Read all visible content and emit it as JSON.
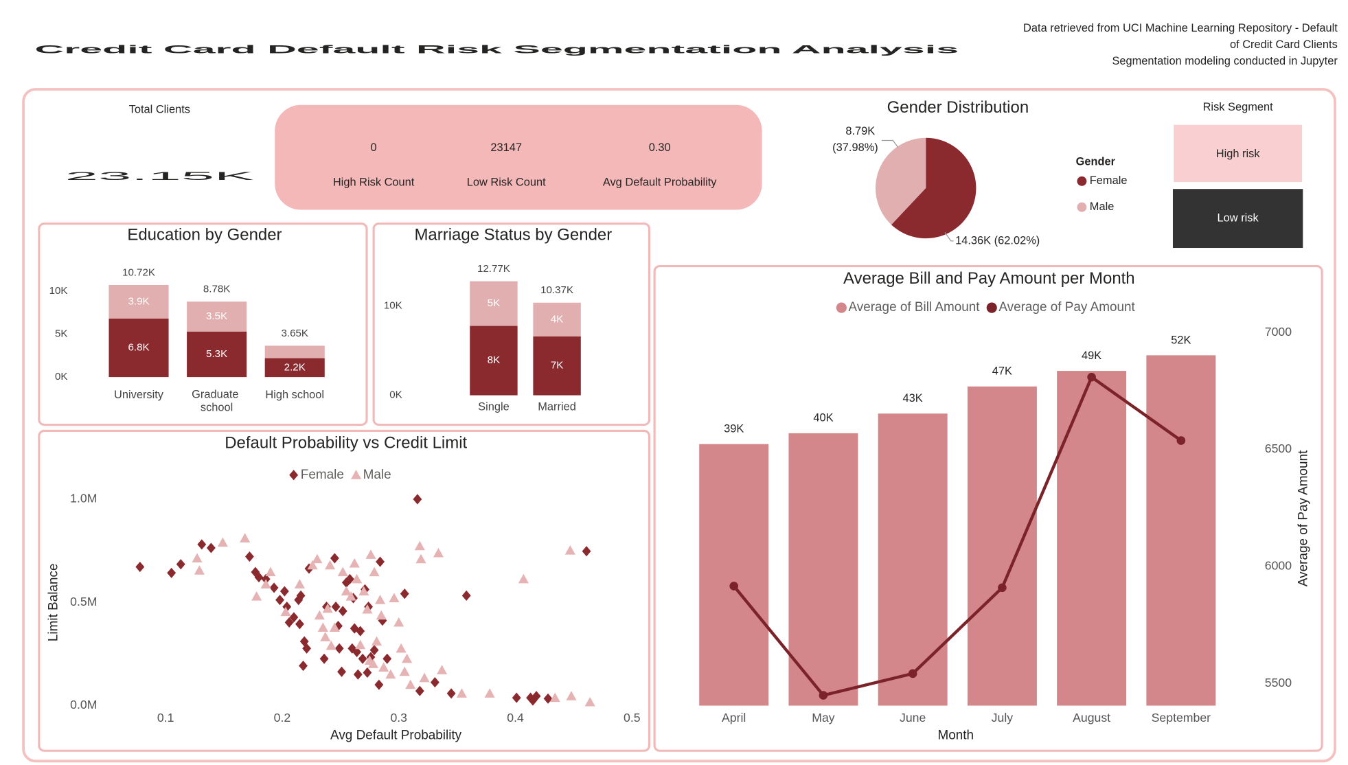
{
  "header": {
    "title": "Credit Card Default Risk Segmentation Analysis",
    "source_lines": [
      "Data retrieved from UCI Machine Learning Repository - Default",
      "of Credit Card Clients",
      "Segmentation modeling conducted in Jupyter"
    ]
  },
  "kpis": {
    "total_clients": {
      "label": "Total Clients",
      "value": "23.15K"
    },
    "cards": [
      {
        "value": "0",
        "label": "High Risk Count"
      },
      {
        "value": "23147",
        "label": "Low Risk Count"
      },
      {
        "value": "0.30",
        "label": "Avg Default Probability"
      }
    ]
  },
  "risk_segment": {
    "title": "Risk Segment",
    "items": [
      "High risk",
      "Low risk"
    ]
  },
  "chart_data": [
    {
      "type": "stacked_bar",
      "title": "Education by Gender",
      "categories": [
        "University",
        "Graduate school",
        "High school"
      ],
      "series": [
        {
          "color": "#8b2a2e",
          "values": [
            6820,
            5300,
            2200
          ],
          "value_labels": [
            "6.8K",
            "5.3K",
            "2.2K"
          ]
        },
        {
          "color": "#e2afb0",
          "values": [
            3900,
            3480,
            1450
          ],
          "value_labels": [
            "3.9K",
            "3.5K",
            null
          ]
        }
      ],
      "totals": [
        10720,
        8780,
        3650
      ],
      "total_labels": [
        "10.72K",
        "8.78K",
        "3.65K"
      ],
      "ylim": [
        0,
        11600
      ],
      "yticks": [
        {
          "value": 0,
          "label": "0K"
        },
        {
          "value": 5000,
          "label": "5K"
        },
        {
          "value": 10000,
          "label": "10K"
        }
      ]
    },
    {
      "type": "stacked_bar",
      "title": "Marriage Status by Gender",
      "categories": [
        "Single",
        "Married"
      ],
      "series": [
        {
          "color": "#8b2a2e",
          "values": [
            7770,
            6600
          ],
          "value_labels": [
            "8K",
            "7K"
          ]
        },
        {
          "color": "#e2afb0",
          "values": [
            5000,
            3770
          ],
          "value_labels": [
            "5K",
            "4K"
          ]
        }
      ],
      "totals": [
        12770,
        10370
      ],
      "total_labels": [
        "12.77K",
        "10.37K"
      ],
      "ylim": [
        0,
        13200
      ],
      "yticks": [
        {
          "value": 0,
          "label": "0K"
        },
        {
          "value": 10000,
          "label": "10K"
        }
      ]
    },
    {
      "type": "pie",
      "title": "Gender Distribution",
      "legend_title": "Gender",
      "categories": [
        "Female",
        "Male"
      ],
      "values": [
        14360,
        8790
      ],
      "value_labels": [
        "14.36K (62.02%)",
        "8.79K (37.98%)"
      ],
      "colors": [
        "#8b2a2e",
        "#e2afb0"
      ]
    },
    {
      "type": "scatter",
      "title": "Default Probability vs Credit Limit",
      "x_label": "Avg Default Probability",
      "y_label": "Limit Balance",
      "series": [
        {
          "name": "Female",
          "marker": "diamond",
          "color": "#8b2a2e",
          "x": [
            0.078,
            0.105,
            0.113,
            0.131,
            0.139,
            0.172,
            0.177,
            0.18,
            0.186,
            0.193,
            0.198,
            0.202,
            0.204,
            0.206,
            0.21,
            0.214,
            0.215,
            0.216,
            0.219,
            0.221,
            0.218,
            0.223,
            0.238,
            0.236,
            0.245,
            0.246,
            0.248,
            0.249,
            0.251,
            0.252,
            0.255,
            0.258,
            0.26,
            0.261,
            0.262,
            0.264,
            0.265,
            0.267,
            0.269,
            0.271,
            0.273,
            0.274,
            0.276,
            0.279,
            0.284,
            0.286,
            0.283,
            0.29,
            0.305,
            0.316,
            0.318,
            0.331,
            0.345,
            0.358,
            0.401,
            0.413,
            0.415,
            0.418,
            0.428,
            0.461
          ],
          "values": [
            672000,
            643000,
            685000,
            781000,
            764000,
            722000,
            647000,
            622000,
            613000,
            571000,
            512000,
            554000,
            479000,
            403000,
            428000,
            512000,
            395000,
            533000,
            311000,
            277000,
            193000,
            664000,
            479000,
            227000,
            714000,
            479000,
            386000,
            277000,
            164000,
            458000,
            596000,
            613000,
            277000,
            521000,
            374000,
            260000,
            151000,
            361000,
            227000,
            563000,
            160000,
            479000,
            235000,
            269000,
            697000,
            412000,
            101000,
            227000,
            542000,
            1000000,
            71000,
            113000,
            59000,
            533000,
            38000,
            38000,
            25000,
            46000,
            34000,
            748000
          ]
        },
        {
          "name": "Male",
          "marker": "triangle",
          "color": "#e6b3b4",
          "x": [
            0.127,
            0.129,
            0.149,
            0.168,
            0.178,
            0.186,
            0.19,
            0.203,
            0.215,
            0.226,
            0.23,
            0.232,
            0.235,
            0.237,
            0.239,
            0.241,
            0.242,
            0.245,
            0.252,
            0.255,
            0.259,
            0.262,
            0.264,
            0.267,
            0.27,
            0.273,
            0.275,
            0.276,
            0.278,
            0.279,
            0.281,
            0.284,
            0.285,
            0.287,
            0.293,
            0.296,
            0.3,
            0.302,
            0.305,
            0.307,
            0.31,
            0.318,
            0.319,
            0.322,
            0.334,
            0.337,
            0.354,
            0.378,
            0.407,
            0.434,
            0.447,
            0.448,
            0.464
          ],
          "values": [
            714000,
            655000,
            790000,
            811000,
            529000,
            588000,
            647000,
            454000,
            588000,
            680000,
            710000,
            437000,
            378000,
            332000,
            470000,
            680000,
            290000,
            378000,
            647000,
            554000,
            529000,
            689000,
            613000,
            294000,
            554000,
            466000,
            218000,
            731000,
            202000,
            647000,
            311000,
            512000,
            437000,
            185000,
            151000,
            521000,
            403000,
            277000,
            164000,
            227000,
            101000,
            773000,
            710000,
            134000,
            739000,
            172000,
            59000,
            59000,
            613000,
            38000,
            752000,
            46000,
            17000
          ]
        }
      ],
      "xlim": [
        0.055,
        0.5
      ],
      "xticks": [
        0.1,
        0.2,
        0.3,
        0.4,
        0.5
      ],
      "ylim": [
        0,
        1050000
      ],
      "yticks": [
        {
          "value": 0,
          "label": "0.0M"
        },
        {
          "value": 500000,
          "label": "0.5M"
        },
        {
          "value": 1000000,
          "label": "1.0M"
        }
      ]
    },
    {
      "type": "bar_line",
      "title": "Average Bill and Pay Amount per Month",
      "x_label": "Month",
      "y2_label": "Average of Pay Amount",
      "categories": [
        "April",
        "May",
        "June",
        "July",
        "August",
        "September"
      ],
      "series": [
        {
          "name": "Average of Bill Amount",
          "type": "bar",
          "color": "#d4878a",
          "values": [
            38600,
            40200,
            43100,
            47100,
            49400,
            51700
          ],
          "value_labels": [
            "39K",
            "40K",
            "43K",
            "47K",
            "49K",
            "52K"
          ]
        },
        {
          "name": "Average of Pay Amount",
          "type": "line",
          "axis": "y2",
          "color": "#7b2329",
          "values": [
            5916,
            5449,
            5542,
            5909,
            6809,
            6538
          ]
        }
      ],
      "ylim": [
        0,
        56800
      ],
      "y2lim": [
        5405,
        7050
      ],
      "y2ticks": [
        5500,
        6000,
        6500,
        7000
      ]
    }
  ]
}
